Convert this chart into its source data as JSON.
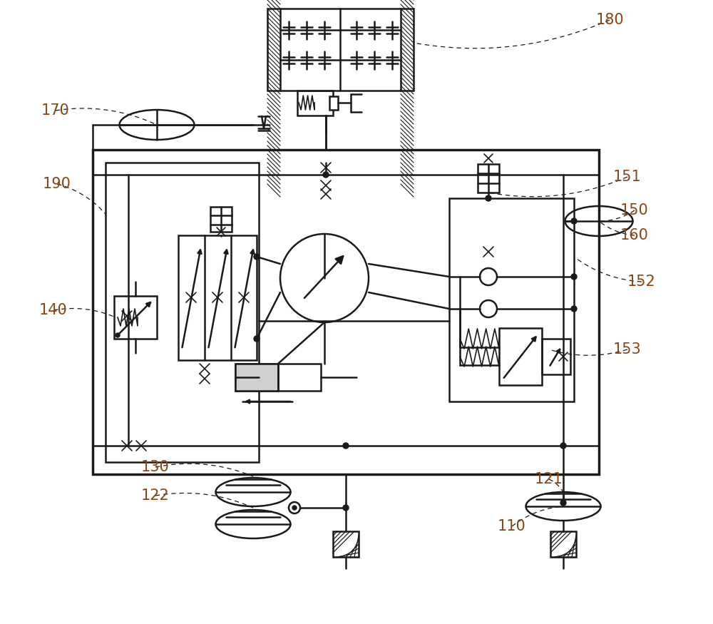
{
  "bg": "#ffffff",
  "lc": "#1a1a1a",
  "lc2": "#8B4513",
  "lw": 1.8,
  "lw2": 1.2,
  "lw3": 2.5
}
